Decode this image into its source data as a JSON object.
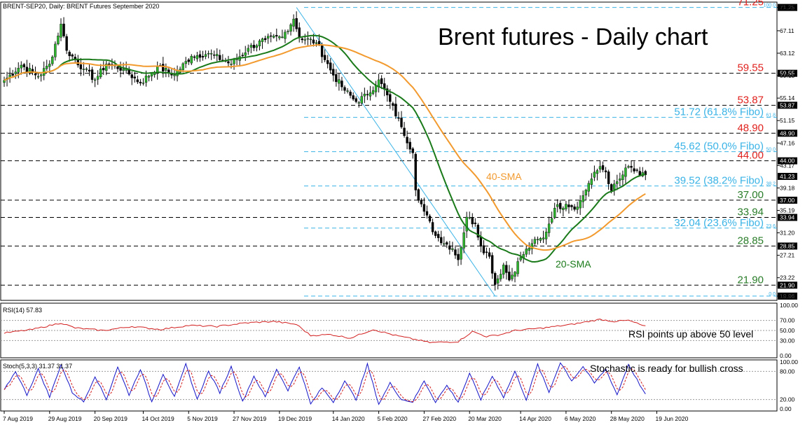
{
  "header": {
    "symbol_line": "BRENT-SEP20, Daily:  BRENT Futures September 2020"
  },
  "chart_data": {
    "type": "candlestick",
    "title": "Brent futures - Daily chart",
    "price_axis": {
      "ylim": [
        19.2,
        72.2
      ],
      "ticks": [
        "71.25",
        "67.11",
        "63.12",
        "59.13",
        "55.14",
        "51.15",
        "47.16",
        "43.17",
        "39.18",
        "35.19",
        "31.20",
        "27.21",
        "23.22",
        "19.96"
      ]
    },
    "x_axis": {
      "labels": [
        "7 Aug 2019",
        "29 Aug 2019",
        "20 Sep 2019",
        "14 Oct 2019",
        "5 Nov 2019",
        "27 Nov 2019",
        "19 Dec 2019",
        "14 Jan 2020",
        "5 Feb 2020",
        "27 Feb 2020",
        "20 Mar 2020",
        "14 Apr 2020",
        "6 May 2020",
        "28 May 2020",
        "19 Jun 2020"
      ],
      "label_bar_index": [
        0,
        16,
        32,
        49,
        65,
        81,
        97,
        116,
        132,
        148,
        164,
        182,
        198,
        214,
        230
      ]
    },
    "current_price": {
      "value": 41.23,
      "label": "41.23"
    },
    "levels": [
      {
        "value": 71.25,
        "label": "71.25",
        "kind": "red",
        "tag": "71.25",
        "fib": "100.0"
      },
      {
        "value": 59.55,
        "label": "59.55",
        "kind": "red",
        "tag": "59.55"
      },
      {
        "value": 53.87,
        "label": "53.87",
        "kind": "red",
        "tag": "53.87"
      },
      {
        "value": 51.72,
        "label": "51.72 (61.8% Fibo)",
        "kind": "fib",
        "fib": "61.8"
      },
      {
        "value": 48.9,
        "label": "48.90",
        "kind": "red",
        "tag": "48.90"
      },
      {
        "value": 45.62,
        "label": "45.62 (50.0% Fibo)",
        "kind": "fib",
        "fib": "50.0"
      },
      {
        "value": 44.0,
        "label": "44.00",
        "kind": "red",
        "tag": "44.00"
      },
      {
        "value": 39.52,
        "label": "39.52 (38.2% Fibo)",
        "kind": "fib",
        "fib": "38.2"
      },
      {
        "value": 37.0,
        "label": "37.00",
        "kind": "green",
        "tag": "37.00"
      },
      {
        "value": 33.94,
        "label": "33.94",
        "kind": "green",
        "tag": "33.94"
      },
      {
        "value": 32.04,
        "label": "32.04 (23.6% Fibo)",
        "kind": "fib",
        "fib": "23.6"
      },
      {
        "value": 28.85,
        "label": "28.85",
        "kind": "green",
        "tag": "28.85"
      },
      {
        "value": 21.9,
        "label": "21.90",
        "kind": "green",
        "tag": "21.90"
      },
      {
        "value": 19.96,
        "label": "",
        "kind": "fibbase",
        "tag": "19.96",
        "fib": "0.0"
      }
    ],
    "trendline": {
      "from_bar": 103,
      "from_value": 71.25,
      "to_bar": 173,
      "to_value": 19.96
    },
    "anchors": [
      [
        0,
        58.3
      ],
      [
        6,
        61.0
      ],
      [
        12,
        59.0
      ],
      [
        16,
        61.2
      ],
      [
        20,
        68.3
      ],
      [
        22,
        63.6
      ],
      [
        28,
        60.3
      ],
      [
        32,
        58.4
      ],
      [
        36,
        61.2
      ],
      [
        42,
        60.3
      ],
      [
        48,
        57.8
      ],
      [
        54,
        60.7
      ],
      [
        60,
        59.3
      ],
      [
        66,
        62.6
      ],
      [
        72,
        63.1
      ],
      [
        80,
        61.2
      ],
      [
        86,
        64.0
      ],
      [
        92,
        65.5
      ],
      [
        98,
        66.0
      ],
      [
        102,
        69.2
      ],
      [
        104,
        66.0
      ],
      [
        110,
        65.0
      ],
      [
        116,
        59.2
      ],
      [
        120,
        56.5
      ],
      [
        124,
        54.5
      ],
      [
        128,
        55.7
      ],
      [
        132,
        58.4
      ],
      [
        136,
        54.5
      ],
      [
        140,
        50.0
      ],
      [
        144,
        45.4
      ],
      [
        145,
        38.8
      ],
      [
        148,
        35.0
      ],
      [
        152,
        30.7
      ],
      [
        158,
        28.4
      ],
      [
        160,
        26.4
      ],
      [
        163,
        34.0
      ],
      [
        166,
        32.8
      ],
      [
        168,
        28.8
      ],
      [
        171,
        27.0
      ],
      [
        173,
        22.0
      ],
      [
        176,
        25.5
      ],
      [
        178,
        22.8
      ],
      [
        182,
        26.8
      ],
      [
        186,
        29.3
      ],
      [
        190,
        30.3
      ],
      [
        194,
        35.6
      ],
      [
        198,
        36.3
      ],
      [
        202,
        35.8
      ],
      [
        206,
        40.0
      ],
      [
        210,
        43.0
      ],
      [
        212,
        42.0
      ],
      [
        214,
        38.7
      ],
      [
        218,
        41.5
      ],
      [
        220,
        43.0
      ],
      [
        224,
        41.4
      ],
      [
        226,
        41.5
      ]
    ],
    "series": [
      {
        "name": "20-SMA",
        "period": 20,
        "color": "#1a7a1a"
      },
      {
        "name": "40-SMA",
        "period": 40,
        "color": "#f29a2e"
      }
    ],
    "annotations": {
      "sma20": "20-SMA",
      "sma40": "40-SMA"
    },
    "rsi": {
      "header": "RSI(14) 57.83",
      "ticks": [
        "100.00",
        "70.00",
        "50.00",
        "30.00",
        "0.00"
      ],
      "annotation": "RSI points up above 50 level",
      "anchors": [
        [
          0,
          45
        ],
        [
          10,
          52
        ],
        [
          20,
          65
        ],
        [
          25,
          55
        ],
        [
          35,
          50
        ],
        [
          45,
          58
        ],
        [
          55,
          52
        ],
        [
          65,
          60
        ],
        [
          75,
          58
        ],
        [
          85,
          65
        ],
        [
          95,
          68
        ],
        [
          103,
          62
        ],
        [
          108,
          40
        ],
        [
          115,
          42
        ],
        [
          122,
          35
        ],
        [
          130,
          52
        ],
        [
          138,
          40
        ],
        [
          145,
          32
        ],
        [
          150,
          26
        ],
        [
          160,
          28
        ],
        [
          165,
          48
        ],
        [
          170,
          38
        ],
        [
          175,
          42
        ],
        [
          180,
          50
        ],
        [
          190,
          55
        ],
        [
          200,
          62
        ],
        [
          210,
          72
        ],
        [
          215,
          68
        ],
        [
          220,
          70
        ],
        [
          226,
          58
        ]
      ]
    },
    "stoch": {
      "header": "Stoch(5,3,3) 31.37 31.37",
      "ticks": [
        "100.00",
        "80.00",
        "20.00",
        "0.00"
      ],
      "annotation": "Stochastic is ready for bullish cross",
      "anchors": [
        [
          0,
          40
        ],
        [
          4,
          80
        ],
        [
          8,
          30
        ],
        [
          12,
          85
        ],
        [
          16,
          25
        ],
        [
          20,
          95
        ],
        [
          24,
          35
        ],
        [
          28,
          15
        ],
        [
          32,
          70
        ],
        [
          36,
          20
        ],
        [
          40,
          90
        ],
        [
          44,
          30
        ],
        [
          48,
          85
        ],
        [
          52,
          15
        ],
        [
          56,
          75
        ],
        [
          60,
          25
        ],
        [
          64,
          95
        ],
        [
          68,
          20
        ],
        [
          72,
          80
        ],
        [
          76,
          35
        ],
        [
          80,
          90
        ],
        [
          84,
          15
        ],
        [
          88,
          70
        ],
        [
          92,
          25
        ],
        [
          96,
          85
        ],
        [
          100,
          40
        ],
        [
          104,
          90
        ],
        [
          108,
          10
        ],
        [
          112,
          45
        ],
        [
          116,
          15
        ],
        [
          120,
          60
        ],
        [
          124,
          20
        ],
        [
          128,
          95
        ],
        [
          132,
          10
        ],
        [
          136,
          55
        ],
        [
          140,
          20
        ],
        [
          144,
          15
        ],
        [
          148,
          60
        ],
        [
          152,
          15
        ],
        [
          156,
          50
        ],
        [
          160,
          15
        ],
        [
          164,
          75
        ],
        [
          168,
          20
        ],
        [
          172,
          70
        ],
        [
          176,
          25
        ],
        [
          180,
          80
        ],
        [
          184,
          20
        ],
        [
          188,
          95
        ],
        [
          192,
          35
        ],
        [
          196,
          100
        ],
        [
          200,
          60
        ],
        [
          204,
          90
        ],
        [
          208,
          55
        ],
        [
          212,
          85
        ],
        [
          216,
          30
        ],
        [
          220,
          95
        ],
        [
          226,
          30
        ]
      ]
    }
  }
}
